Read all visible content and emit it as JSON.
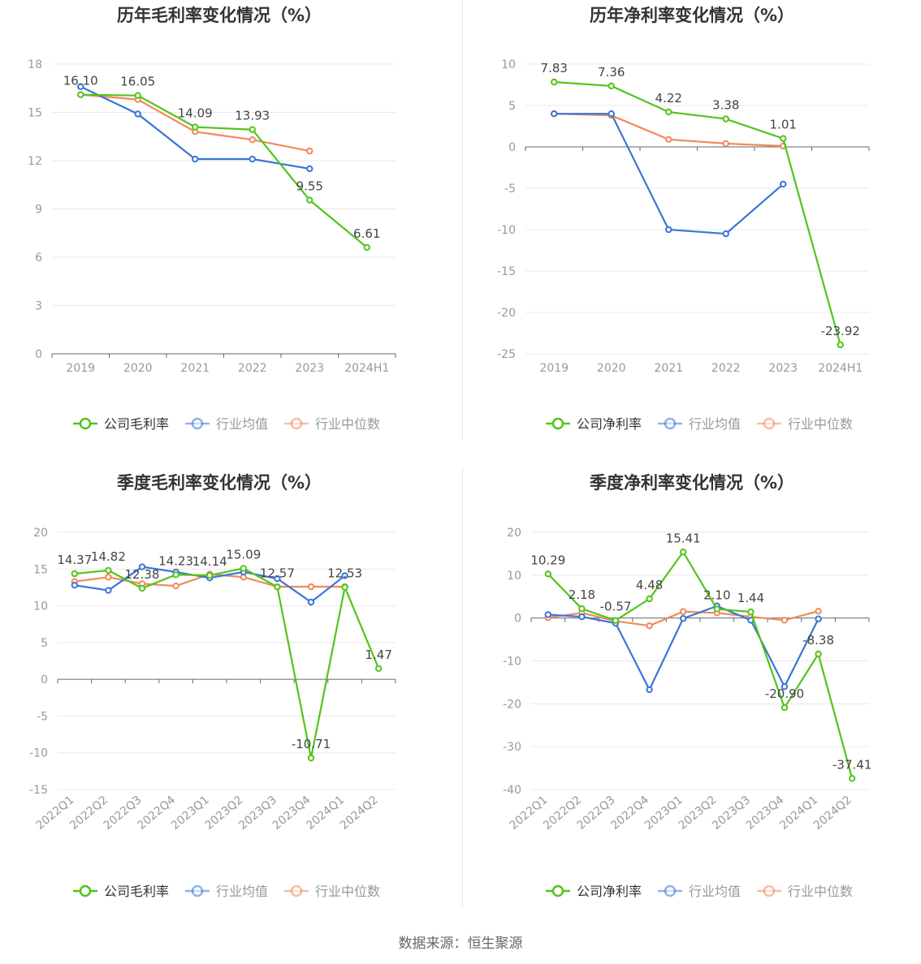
{
  "source": "数据来源：恒生聚源",
  "colors": {
    "company": "#52c41a",
    "avg": "#3a75d8",
    "median": "#f08a5a",
    "grid": "#e8e8e8",
    "axis": "#666666"
  },
  "chart_data": [
    {
      "type": "line",
      "title": "历年毛利率变化情况（%）",
      "categories": [
        "2019",
        "2020",
        "2021",
        "2022",
        "2023",
        "2024H1"
      ],
      "ylim": [
        0,
        18
      ],
      "yticks": [
        0,
        3,
        6,
        9,
        12,
        15,
        18
      ],
      "grid": true,
      "legend_position": "bottom-center",
      "series": [
        {
          "name": "公司毛利率",
          "key": "company",
          "values": [
            16.1,
            16.05,
            14.09,
            13.93,
            9.55,
            6.61
          ],
          "labels": [
            "16.10",
            "16.05",
            "14.09",
            "13.93",
            "9.55",
            "6.61"
          ]
        },
        {
          "name": "行业均值",
          "key": "avg",
          "values": [
            16.6,
            14.9,
            12.1,
            12.1,
            11.5,
            null
          ]
        },
        {
          "name": "行业中位数",
          "key": "median",
          "values": [
            16.1,
            15.8,
            13.8,
            13.3,
            12.6,
            null
          ]
        }
      ]
    },
    {
      "type": "line",
      "title": "历年净利率变化情况（%）",
      "categories": [
        "2019",
        "2020",
        "2021",
        "2022",
        "2023",
        "2024H1"
      ],
      "ylim": [
        -25,
        10
      ],
      "yticks": [
        -25,
        -20,
        -15,
        -10,
        -5,
        0,
        5,
        10
      ],
      "grid": true,
      "legend_position": "bottom-center",
      "series": [
        {
          "name": "公司净利率",
          "key": "company",
          "values": [
            7.83,
            7.36,
            4.22,
            3.38,
            1.01,
            -23.92
          ],
          "labels": [
            "7.83",
            "7.36",
            "4.22",
            "3.38",
            "1.01",
            "-23.92"
          ]
        },
        {
          "name": "行业均值",
          "key": "avg",
          "values": [
            4.0,
            4.0,
            -10.0,
            -10.5,
            -4.5,
            null
          ]
        },
        {
          "name": "行业中位数",
          "key": "median",
          "values": [
            4.0,
            3.8,
            0.9,
            0.4,
            0.1,
            null
          ]
        }
      ]
    },
    {
      "type": "line",
      "title": "季度毛利率变化情况（%）",
      "categories": [
        "2022Q1",
        "2022Q2",
        "2022Q3",
        "2022Q4",
        "2023Q1",
        "2023Q2",
        "2023Q3",
        "2023Q4",
        "2024Q1",
        "2024Q2"
      ],
      "ylim": [
        -15,
        20
      ],
      "yticks": [
        -15,
        -10,
        -5,
        0,
        5,
        10,
        15,
        20
      ],
      "grid": true,
      "legend_position": "bottom-center",
      "series": [
        {
          "name": "公司毛利率",
          "key": "company",
          "values": [
            14.37,
            14.82,
            12.38,
            14.23,
            14.14,
            15.09,
            12.57,
            -10.71,
            12.53,
            1.47
          ],
          "labels": [
            "14.37",
            "14.82",
            "12.38",
            "14.23",
            "14.14",
            "15.09",
            "12.57",
            "-10.71",
            "12.53",
            "1.47"
          ]
        },
        {
          "name": "行业均值",
          "key": "avg",
          "values": [
            12.8,
            12.1,
            15.3,
            14.6,
            13.8,
            14.6,
            13.7,
            10.5,
            14.1,
            null
          ]
        },
        {
          "name": "行业中位数",
          "key": "median",
          "values": [
            13.3,
            13.9,
            13.0,
            12.7,
            14.3,
            13.9,
            12.6,
            12.6,
            12.6,
            null
          ]
        }
      ]
    },
    {
      "type": "line",
      "title": "季度净利率变化情况（%）",
      "categories": [
        "2022Q1",
        "2022Q2",
        "2022Q3",
        "2022Q4",
        "2023Q1",
        "2023Q2",
        "2023Q3",
        "2023Q4",
        "2024Q1",
        "2024Q2"
      ],
      "ylim": [
        -40,
        20
      ],
      "yticks": [
        -40,
        -30,
        -20,
        -10,
        0,
        10,
        20
      ],
      "grid": true,
      "legend_position": "bottom-center",
      "series": [
        {
          "name": "公司净利率",
          "key": "company",
          "values": [
            10.29,
            2.18,
            -0.57,
            4.48,
            15.41,
            2.1,
            1.44,
            -20.9,
            -8.38,
            -37.41
          ],
          "labels": [
            "10.29",
            "2.18",
            "-0.57",
            "4.48",
            "15.41",
            "2.10",
            "1.44",
            "-20.90",
            "-8.38",
            "-37.41"
          ]
        },
        {
          "name": "行业均值",
          "key": "avg",
          "values": [
            0.8,
            0.3,
            -1.2,
            -16.7,
            -0.1,
            2.8,
            -0.5,
            -16.0,
            -0.2,
            null
          ]
        },
        {
          "name": "行业中位数",
          "key": "median",
          "values": [
            0.1,
            1.2,
            -0.7,
            -1.8,
            1.5,
            1.2,
            0.3,
            -0.5,
            1.6,
            null
          ]
        }
      ]
    }
  ]
}
